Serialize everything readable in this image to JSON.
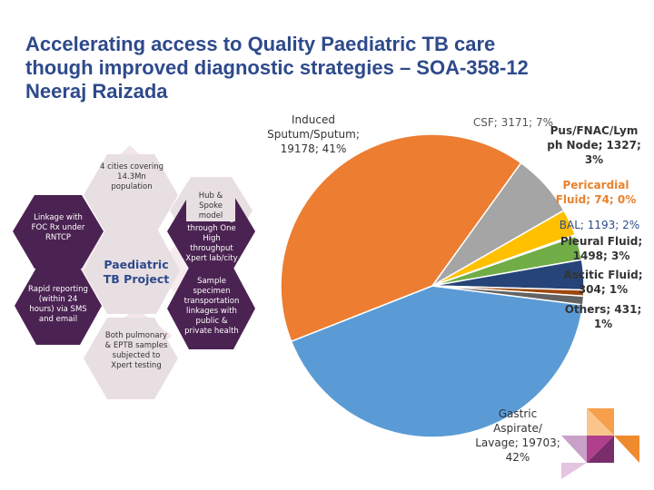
{
  "title_lines": [
    "Accelerating access to Quality Paediatric TB care",
    "though improved diagnostic strategies – SOA-358-12",
    "Neeraj Raizada"
  ],
  "hexagons": {
    "center": "Paediatric TB Project",
    "cities": "4 cities covering 14.3Mn population",
    "hub": "Hub & Spoke model",
    "foc_testing": "FOC testing through One High throughput Xpert lab/city",
    "transport": "Sample specimen transportation linkages with public & private health",
    "samples": "Both pulmonary & EPTB samples subjected to Xpert testing",
    "reporting": "Rapid reporting (within 24 hours) via SMS and email",
    "linkage": "Linkage with FOC Rx under RNTCP"
  },
  "chart_data": {
    "type": "pie",
    "title": "",
    "series": [
      {
        "name": "Gastric Aspirate/ Lavage",
        "value": 19703,
        "percent": "42%",
        "color": "#5b9bd5",
        "label_lines": [
          "Gastric",
          "Aspirate/",
          "Lavage; 19703;",
          "42%"
        ]
      },
      {
        "name": "Induced Sputum/Sputum",
        "value": 19178,
        "percent": "41%",
        "color": "#ed7d31",
        "label_lines": [
          "Induced",
          "Sputum/Sputum;",
          "19178; 41%"
        ]
      },
      {
        "name": "CSF",
        "value": 3171,
        "percent": "7%",
        "color": "#a5a5a5",
        "label_lines": [
          "CSF; 3171; 7%"
        ]
      },
      {
        "name": "Pus/FNAC/Lymph Node",
        "value": 1327,
        "percent": "3%",
        "color": "#ffc000",
        "label_lines": [
          "Pus/FNAC/Lym",
          "ph Node; 1327;",
          "3%"
        ]
      },
      {
        "name": "Pericardial Fluid",
        "value": 74,
        "percent": "0%",
        "color": "#4472c4",
        "label_lines": [
          "Pericardial",
          "Fluid; 74; 0%"
        ]
      },
      {
        "name": "BAL",
        "value": 1193,
        "percent": "2%",
        "color": "#70ad47",
        "label_lines": [
          "BAL; 1193; 2%"
        ]
      },
      {
        "name": "Pleural Fluid",
        "value": 1498,
        "percent": "3%",
        "color": "#264478",
        "label_lines": [
          "Pleural Fluid;",
          "1498; 3%"
        ]
      },
      {
        "name": "Ascitic Fluid",
        "value": 304,
        "percent": "1%",
        "color": "#9e480e",
        "label_lines": [
          "Ascitic Fluid;",
          "304; 1%"
        ]
      },
      {
        "name": "Others",
        "value": 431,
        "percent": "1%",
        "color": "#636363",
        "label_lines": [
          "Others; 431;",
          "1%"
        ]
      }
    ]
  }
}
